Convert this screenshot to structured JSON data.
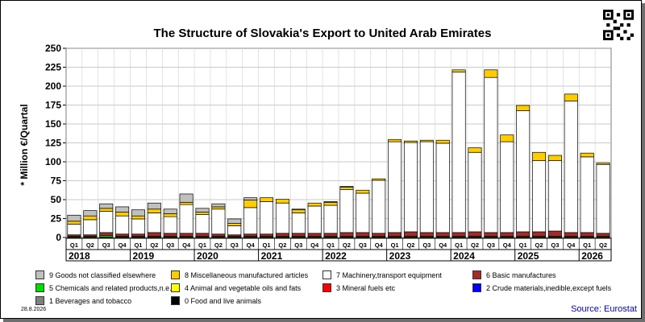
{
  "title": "The Structure of Slovakia's Export to United Arab Emirates",
  "ylabel": "* Million €/Quartal",
  "date": "28.8.2026",
  "source": "Source: Eurostat",
  "chart_data": {
    "type": "bar",
    "stacked": true,
    "title": "The Structure of Slovakia's Export to United Arab Emirates",
    "ylabel": "* Million €/Quartal",
    "ylim": [
      0,
      250
    ],
    "yticks": [
      0,
      25,
      50,
      75,
      100,
      125,
      150,
      175,
      200,
      225,
      250
    ],
    "grid": true,
    "categories": [
      "Q1",
      "Q2",
      "Q3",
      "Q4",
      "Q1",
      "Q2",
      "Q3",
      "Q4",
      "Q1",
      "Q2",
      "Q3",
      "Q4",
      "Q1",
      "Q2",
      "Q3",
      "Q4",
      "Q1",
      "Q2",
      "Q3",
      "Q4",
      "Q1",
      "Q2",
      "Q3",
      "Q4",
      "Q1",
      "Q2",
      "Q3",
      "Q4",
      "Q1",
      "Q2",
      "Q3",
      "Q4",
      "Q1",
      "Q2"
    ],
    "years": [
      {
        "label": "2018",
        "quarters": 4
      },
      {
        "label": "2019",
        "quarters": 4
      },
      {
        "label": "2020",
        "quarters": 4
      },
      {
        "label": "2021",
        "quarters": 4
      },
      {
        "label": "2022",
        "quarters": 4
      },
      {
        "label": "2023",
        "quarters": 4
      },
      {
        "label": "2024",
        "quarters": 4
      },
      {
        "label": "2025",
        "quarters": 4
      },
      {
        "label": "2026",
        "quarters": 2
      }
    ],
    "series": [
      {
        "name": "0 Food and live animals",
        "color": "#000000",
        "values": [
          0.5,
          0.5,
          0.5,
          0.5,
          0.5,
          0.5,
          0.5,
          0.5,
          0.5,
          0.5,
          0.5,
          0.5,
          0.5,
          0.5,
          0.5,
          0.5,
          0.5,
          0.5,
          0.5,
          0.5,
          0.5,
          0.5,
          0.5,
          0.5,
          0.5,
          0.5,
          0.5,
          0.5,
          0.5,
          0.5,
          0.5,
          0.5,
          0.5,
          0.5
        ]
      },
      {
        "name": "1 Beverages and tobacco",
        "color": "#808080",
        "values": [
          0,
          0,
          0,
          0,
          0,
          0,
          0,
          0,
          0,
          0,
          0,
          0,
          0,
          0,
          0,
          0,
          0,
          0,
          0,
          0,
          0,
          0,
          0,
          0,
          0,
          0,
          0,
          0,
          0,
          0,
          0,
          0,
          0,
          0
        ]
      },
      {
        "name": "2 Crude materials,inedible,except fuels",
        "color": "#0000ff",
        "values": [
          0,
          0,
          0,
          0,
          0,
          0,
          0,
          0,
          0,
          0,
          0,
          0,
          0,
          0,
          0,
          0,
          0,
          0,
          0,
          0,
          0,
          0,
          0,
          0,
          0,
          0,
          0,
          0,
          0,
          0,
          0,
          0,
          0,
          0
        ]
      },
      {
        "name": "3 Mineral fuels etc",
        "color": "#ff0000",
        "values": [
          0,
          0,
          0,
          0,
          0,
          0,
          0,
          0,
          0,
          0,
          0,
          0,
          0,
          0,
          0,
          0,
          0,
          0,
          0,
          0,
          0,
          0,
          0,
          0,
          0,
          0,
          0,
          0,
          0,
          0,
          0,
          0,
          0,
          0
        ]
      },
      {
        "name": "4 Animal and vegetable oils and fats",
        "color": "#ffff00",
        "values": [
          0,
          0,
          0,
          0,
          0,
          0,
          0,
          0,
          0,
          0,
          0,
          0,
          0,
          0,
          0,
          0,
          0,
          0,
          0,
          0,
          0,
          0,
          0,
          0,
          0,
          0,
          0,
          0,
          0,
          0,
          0,
          0,
          0,
          0
        ]
      },
      {
        "name": "5 Chemicals and related products,n.e.s.",
        "color": "#00dd00",
        "values": [
          1,
          1,
          2,
          1,
          1,
          1,
          1,
          1,
          1,
          1,
          1,
          1,
          1,
          1,
          1,
          1,
          1,
          1,
          1,
          1,
          1,
          1,
          1,
          1,
          1,
          1,
          1,
          1,
          1,
          1,
          1,
          1,
          1,
          1
        ]
      },
      {
        "name": "6 Basic manufactures",
        "color": "#a52a2a",
        "values": [
          2,
          2,
          4,
          3,
          3,
          5,
          4,
          4,
          4,
          3,
          2,
          3,
          3,
          4,
          4,
          4,
          4,
          5,
          5,
          4,
          5,
          6,
          5,
          5,
          5,
          6,
          5,
          5,
          6,
          6,
          7,
          5,
          5,
          4
        ]
      },
      {
        "name": "7 Machinery,transport equipment",
        "color": "#ffffff",
        "values": [
          14,
          20,
          28,
          24,
          20,
          26,
          22,
          38,
          25,
          33,
          12,
          35,
          43,
          40,
          27,
          36,
          37,
          57,
          52,
          70,
          120,
          118,
          120,
          118,
          212,
          105,
          205,
          120,
          160,
          94,
          93,
          174,
          100,
          91
        ]
      },
      {
        "name": "8 Miscellaneous manufactured articles",
        "color": "#ffcc00",
        "values": [
          4,
          5,
          4,
          5,
          4,
          5,
          4,
          3,
          3,
          3,
          3,
          10,
          5,
          5,
          4,
          4,
          4,
          3,
          4,
          2,
          3,
          2,
          2,
          4,
          3,
          6,
          10,
          9,
          7,
          11,
          7,
          9,
          5,
          2
        ]
      },
      {
        "name": "9 Goods not classified elsewhere",
        "color": "#c0c0c0",
        "values": [
          8,
          7,
          6,
          7,
          8,
          8,
          6,
          11,
          5,
          4,
          6,
          3,
          0,
          0,
          1,
          0,
          1,
          1,
          0,
          0,
          0,
          0,
          0,
          0,
          0,
          0,
          0,
          0,
          0,
          0,
          0,
          0,
          0,
          0
        ]
      }
    ]
  },
  "legend_rows": [
    [
      {
        "name": "9 Goods not classified elsewhere",
        "color": "#c0c0c0"
      },
      {
        "name": "8 Miscellaneous manufactured articles",
        "color": "#ffcc00"
      },
      {
        "name": "7 Machinery,transport equipment",
        "color": "#ffffff"
      },
      {
        "name": "6 Basic manufactures",
        "color": "#a52a2a"
      }
    ],
    [
      {
        "name": "5 Chemicals and related products,n.e.s.",
        "color": "#00dd00"
      },
      {
        "name": "4 Animal and vegetable oils and fats",
        "color": "#ffff00"
      },
      {
        "name": "3 Mineral fuels etc",
        "color": "#ff0000"
      },
      {
        "name": "2 Crude materials,inedible,except fuels",
        "color": "#0000ff"
      }
    ],
    [
      {
        "name": "1 Beverages and tobacco",
        "color": "#808080"
      },
      {
        "name": "0 Food and live animals",
        "color": "#000000"
      }
    ]
  ]
}
